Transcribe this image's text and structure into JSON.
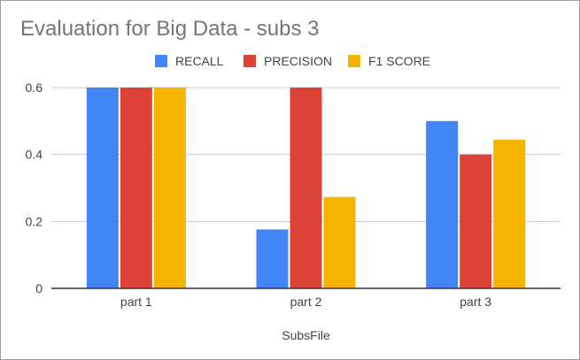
{
  "chart_data": {
    "type": "bar",
    "title": "Evaluation for Big Data - subs 3",
    "xlabel": "SubsFile",
    "ylabel": "",
    "categories": [
      "part 1",
      "part 2",
      "part 3"
    ],
    "series": [
      {
        "name": "RECALL",
        "color": "#4285f4",
        "values": [
          0.6,
          0.176,
          0.5
        ]
      },
      {
        "name": "PRECISION",
        "color": "#db4437",
        "values": [
          0.6,
          0.6,
          0.4
        ]
      },
      {
        "name": "F1 SCORE",
        "color": "#f4b400",
        "values": [
          0.6,
          0.273,
          0.444
        ]
      }
    ],
    "ylim": [
      0,
      0.6
    ],
    "yticks": [
      0,
      0.2,
      0.4,
      0.6
    ],
    "ytick_labels": [
      "0",
      "0.2",
      "0.4",
      "0.6"
    ],
    "grid": true,
    "legend_position": "top"
  }
}
